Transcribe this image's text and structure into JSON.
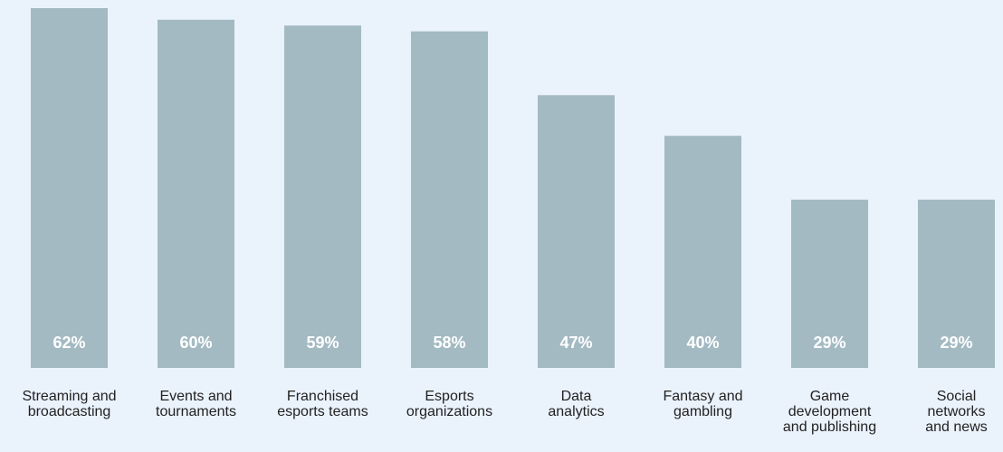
{
  "chart_data": {
    "type": "bar",
    "categories": [
      "Streaming and\nbroadcasting",
      "Events and\ntournaments",
      "Franchised\nesports teams",
      "Esports\norganizations",
      "Data\nanalytics",
      "Fantasy and\ngambling",
      "Game\ndevelopment\nand publishing",
      "Social\nnetworks\nand news"
    ],
    "values": [
      62,
      60,
      59,
      58,
      47,
      40,
      29,
      29
    ],
    "value_labels": [
      "62%",
      "60%",
      "59%",
      "58%",
      "47%",
      "40%",
      "29%",
      "29%"
    ],
    "color": "#a3bac3"
  }
}
